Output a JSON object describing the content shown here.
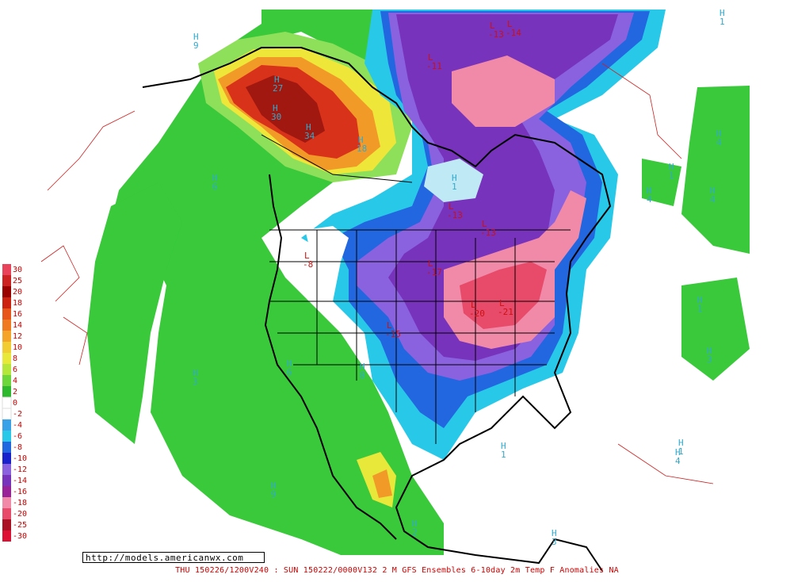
{
  "caption": "THU 150226/1200V240 : SUN 150222/0000V132  2 M GFS Ensembles 6-10day 2m Temp F Anomalies NA",
  "url": "http://models.americanwx.com",
  "legend": [
    {
      "label": "30",
      "color": "#e8435a"
    },
    {
      "label": "25",
      "color": "#cc2222"
    },
    {
      "label": "20",
      "color": "#990000"
    },
    {
      "label": "18",
      "color": "#cc2211"
    },
    {
      "label": "16",
      "color": "#e8551a"
    },
    {
      "label": "14",
      "color": "#f07a22"
    },
    {
      "label": "12",
      "color": "#f5a42a"
    },
    {
      "label": "10",
      "color": "#f2cc33"
    },
    {
      "label": "8",
      "color": "#e8e83a"
    },
    {
      "label": "6",
      "color": "#b5e63c"
    },
    {
      "label": "4",
      "color": "#6cd63a"
    },
    {
      "label": "2",
      "color": "#2eb82e"
    },
    {
      "label": "0",
      "color": "#ffffff"
    },
    {
      "label": "-2",
      "color": "#ffffff"
    },
    {
      "label": "-4",
      "color": "#3aa0e8"
    },
    {
      "label": "-6",
      "color": "#28c8e8"
    },
    {
      "label": "-8",
      "color": "#2266e0"
    },
    {
      "label": "-10",
      "color": "#1a22cc"
    },
    {
      "label": "-12",
      "color": "#8a62e0"
    },
    {
      "label": "-14",
      "color": "#7733bb"
    },
    {
      "label": "-16",
      "color": "#9a2299"
    },
    {
      "label": "-18",
      "color": "#f08aa8"
    },
    {
      "label": "-20",
      "color": "#e84a6a"
    },
    {
      "label": "-25",
      "color": "#aa1122"
    },
    {
      "label": "-30",
      "color": "#dd1133"
    }
  ],
  "markers": [
    {
      "kind": "H",
      "value": "9"
    },
    {
      "kind": "H",
      "value": "27"
    },
    {
      "kind": "H",
      "value": "30"
    },
    {
      "kind": "H",
      "value": "34"
    },
    {
      "kind": "H",
      "value": "18"
    },
    {
      "kind": "H",
      "value": "6"
    },
    {
      "kind": "H",
      "value": "3"
    },
    {
      "kind": "H",
      "value": "6"
    },
    {
      "kind": "H",
      "value": "8"
    },
    {
      "kind": "H",
      "value": "9"
    },
    {
      "kind": "H",
      "value": "1"
    },
    {
      "kind": "H",
      "value": "4"
    },
    {
      "kind": "H",
      "value": "1"
    },
    {
      "kind": "H",
      "value": "4"
    },
    {
      "kind": "H",
      "value": "1"
    },
    {
      "kind": "H",
      "value": "4"
    },
    {
      "kind": "H",
      "value": "1"
    },
    {
      "kind": "H",
      "value": "3"
    },
    {
      "kind": "H",
      "value": "2"
    },
    {
      "kind": "H",
      "value": "1"
    },
    {
      "kind": "H",
      "value": "3"
    },
    {
      "kind": "H",
      "value": "1"
    },
    {
      "kind": "H",
      "value": "4"
    },
    {
      "kind": "L",
      "value": "-13"
    },
    {
      "kind": "L",
      "value": "-14"
    },
    {
      "kind": "L",
      "value": "-11"
    },
    {
      "kind": "L",
      "value": "-13"
    },
    {
      "kind": "L",
      "value": "-17"
    },
    {
      "kind": "L",
      "value": "-20"
    },
    {
      "kind": "L",
      "value": "-21"
    },
    {
      "kind": "L",
      "value": "-13"
    },
    {
      "kind": "L",
      "value": "-8"
    },
    {
      "kind": "L",
      "value": "-15"
    }
  ]
}
